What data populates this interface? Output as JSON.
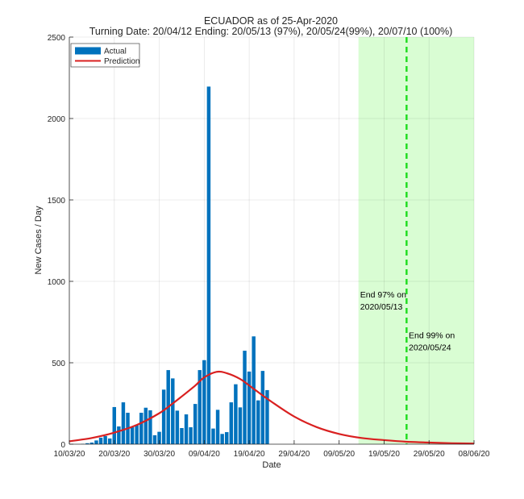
{
  "chart_data": {
    "type": "bar",
    "title": "ECUADOR as of 25-Apr-2020",
    "subtitle": "Turning Date: 20/04/12  Ending: 20/05/13 (97%), 20/05/24(99%), 20/07/10 (100%)",
    "xlabel": "Date",
    "ylabel": "New Cases / Day",
    "x_start": "2020-03-10",
    "x_end": "2020-06-08",
    "xlim_days": [
      0,
      90
    ],
    "ylim": [
      0,
      2500
    ],
    "yticks": [
      0,
      500,
      1000,
      1500,
      2000,
      2500
    ],
    "xticks": [
      {
        "day": 0,
        "label": "10/03/20"
      },
      {
        "day": 10,
        "label": "20/03/20"
      },
      {
        "day": 20,
        "label": "30/03/20"
      },
      {
        "day": 30,
        "label": "09/04/20"
      },
      {
        "day": 40,
        "label": "19/04/20"
      },
      {
        "day": 50,
        "label": "29/04/20"
      },
      {
        "day": 60,
        "label": "09/05/20"
      },
      {
        "day": 70,
        "label": "19/05/20"
      },
      {
        "day": 80,
        "label": "29/05/20"
      },
      {
        "day": 90,
        "label": "08/06/20"
      }
    ],
    "grid": true,
    "legend": {
      "placement": "top-left",
      "entries": [
        {
          "label": "Actual",
          "kind": "bar",
          "color": "#0072bd"
        },
        {
          "label": "Prediction",
          "kind": "line",
          "color": "#d92020"
        }
      ]
    },
    "series": [
      {
        "name": "Actual",
        "kind": "bar",
        "color": "#0072bd",
        "start_day": 3,
        "dates": [
          "13/03",
          "14/03",
          "15/03",
          "16/03",
          "17/03",
          "18/03",
          "19/03",
          "20/03",
          "21/03",
          "22/03",
          "23/03",
          "24/03",
          "25/03",
          "26/03",
          "27/03",
          "28/03",
          "29/03",
          "30/03",
          "31/03",
          "01/04",
          "02/04",
          "03/04",
          "04/04",
          "05/04",
          "06/04",
          "07/04",
          "08/04",
          "09/04",
          "10/04",
          "11/04",
          "12/04",
          "13/04",
          "14/04",
          "15/04",
          "16/04",
          "17/04",
          "18/04",
          "19/04",
          "20/04",
          "21/04",
          "22/04",
          "23/04"
        ],
        "values": [
          2,
          6,
          10,
          23,
          40,
          50,
          35,
          228,
          109,
          257,
          193,
          104,
          120,
          193,
          224,
          208,
          55,
          76,
          335,
          455,
          404,
          206,
          99,
          183,
          104,
          247,
          455,
          516,
          2196,
          96,
          211,
          63,
          74,
          257,
          368,
          226,
          574,
          446,
          662,
          269,
          450,
          332
        ]
      },
      {
        "name": "Prediction",
        "kind": "line",
        "color": "#d92020",
        "days": [
          0,
          5,
          10,
          15,
          20,
          23,
          25,
          28,
          30,
          32.7,
          35,
          38,
          41,
          45,
          50,
          55,
          60,
          65,
          70,
          75,
          80,
          85,
          90
        ],
        "values": [
          18,
          38,
          71,
          118,
          190,
          250,
          293,
          360,
          410,
          444,
          436,
          400,
          340,
          260,
          170,
          105,
          63,
          38,
          25,
          15,
          10,
          6,
          4
        ]
      }
    ],
    "shaded_region": {
      "from_day": 64.3,
      "to_day": 90,
      "color": "#d9fdd3",
      "label": "ending window"
    },
    "vertical_line": {
      "day": 75,
      "color": "#22dd22",
      "style": "dashed"
    },
    "annotations": [
      {
        "lines": [
          "End 97% on",
          "2020/05/13"
        ],
        "day": 64.5,
        "value": 900
      },
      {
        "lines": [
          "End 99% on",
          "2020/05/24"
        ],
        "day": 75.3,
        "value": 650
      }
    ]
  }
}
